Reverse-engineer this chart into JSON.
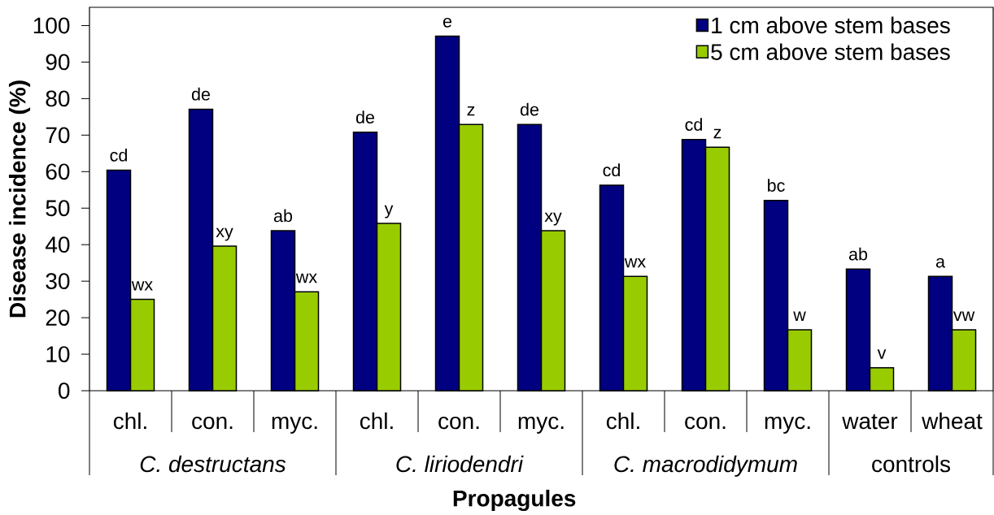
{
  "chart_data": {
    "type": "bar",
    "xlabel": "Propagules",
    "ylabel": "Disease incidence (%)",
    "categories": [
      "chl.",
      "con.",
      "myc.",
      "chl.",
      "con.",
      "myc.",
      "chl.",
      "con.",
      "myc.",
      "water",
      "wheat"
    ],
    "annotations": [
      "C. destructans",
      "C. liriodendri",
      "C. macrodidymum",
      "controls"
    ],
    "series": [
      {
        "name": "1 cm above stem bases",
        "color": "#000080",
        "values": [
          60.4,
          77.1,
          43.8,
          70.8,
          97.1,
          72.9,
          56.3,
          68.8,
          52.1,
          33.3,
          31.3
        ],
        "value_labels": [
          "cd",
          "de",
          "ab",
          "de",
          "e",
          "de",
          "cd",
          "cd",
          "bc",
          "ab",
          "a"
        ]
      },
      {
        "name": "5 cm above stem bases",
        "color": "#99cc00",
        "values": [
          25.0,
          39.6,
          27.1,
          45.8,
          72.9,
          43.8,
          31.3,
          66.7,
          16.7,
          6.3,
          16.7
        ],
        "value_labels": [
          "wx",
          "xy",
          "wx",
          "y",
          "z",
          "xy",
          "wx",
          "z",
          "w",
          "v",
          "vw"
        ]
      }
    ],
    "ylim": [
      0,
      105
    ],
    "yticks": [
      0,
      10,
      20,
      30,
      40,
      50,
      60,
      70,
      80,
      90,
      100
    ],
    "legend": "top right"
  }
}
